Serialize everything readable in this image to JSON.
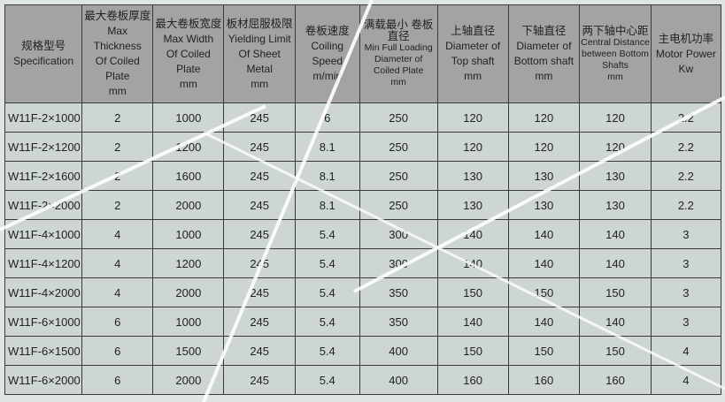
{
  "headers": [
    {
      "zh": "规格型号",
      "en": [
        "Specification"
      ],
      "unit": ""
    },
    {
      "zh": "最大卷板厚度",
      "en": [
        "Max Thickness",
        "Of Coiled Plate"
      ],
      "unit": "mm"
    },
    {
      "zh": "最大卷板宽度",
      "en": [
        "Max Width",
        "Of Coiled Plate"
      ],
      "unit": "mm"
    },
    {
      "zh": "板材屈服极限",
      "en": [
        "Yielding Limit",
        "Of Sheet Metal"
      ],
      "unit": "mm"
    },
    {
      "zh": "卷板速度",
      "en": [
        "Coiling Speed"
      ],
      "unit": "m/min"
    },
    {
      "zh": "满载最小 卷板直径",
      "en": [
        "Min Full Loading",
        "Diameter of",
        "Coiled Plate"
      ],
      "unit": "mm"
    },
    {
      "zh": "上轴直径",
      "en": [
        "Diameter of",
        "Top shaft"
      ],
      "unit": "mm"
    },
    {
      "zh": "下轴直径",
      "en": [
        "Diameter of",
        "Bottom shaft"
      ],
      "unit": "mm"
    },
    {
      "zh": "两下轴中心距",
      "en": [
        "Central Distance",
        "between Bottom",
        "Shafts"
      ],
      "unit": "mm"
    },
    {
      "zh": "主电机功率",
      "en": [
        "Motor Power"
      ],
      "unit": "Kw"
    }
  ],
  "rows": [
    [
      "W11F-2×1000",
      "2",
      "1000",
      "245",
      "6",
      "250",
      "120",
      "120",
      "120",
      "2.2"
    ],
    [
      "W11F-2×1200",
      "2",
      "1200",
      "245",
      "8.1",
      "250",
      "120",
      "120",
      "120",
      "2.2"
    ],
    [
      "W11F-2×1600",
      "2",
      "1600",
      "245",
      "8.1",
      "250",
      "130",
      "130",
      "130",
      "2.2"
    ],
    [
      "W11F-2×2000",
      "2",
      "2000",
      "245",
      "8.1",
      "250",
      "130",
      "130",
      "130",
      "2.2"
    ],
    [
      "W11F-4×1000",
      "4",
      "1000",
      "245",
      "5.4",
      "300",
      "140",
      "140",
      "140",
      "3"
    ],
    [
      "W11F-4×1200",
      "4",
      "1200",
      "245",
      "5.4",
      "300",
      "140",
      "140",
      "140",
      "3"
    ],
    [
      "W11F-4×2000",
      "4",
      "2000",
      "245",
      "5.4",
      "350",
      "150",
      "150",
      "150",
      "3"
    ],
    [
      "W11F-6×1000",
      "6",
      "1000",
      "245",
      "5.4",
      "350",
      "140",
      "140",
      "140",
      "3"
    ],
    [
      "W11F-6×1500",
      "6",
      "1500",
      "245",
      "5.4",
      "400",
      "150",
      "150",
      "150",
      "4"
    ],
    [
      "W11F-6×2000",
      "6",
      "2000",
      "245",
      "5.4",
      "400",
      "160",
      "160",
      "160",
      "4"
    ]
  ]
}
